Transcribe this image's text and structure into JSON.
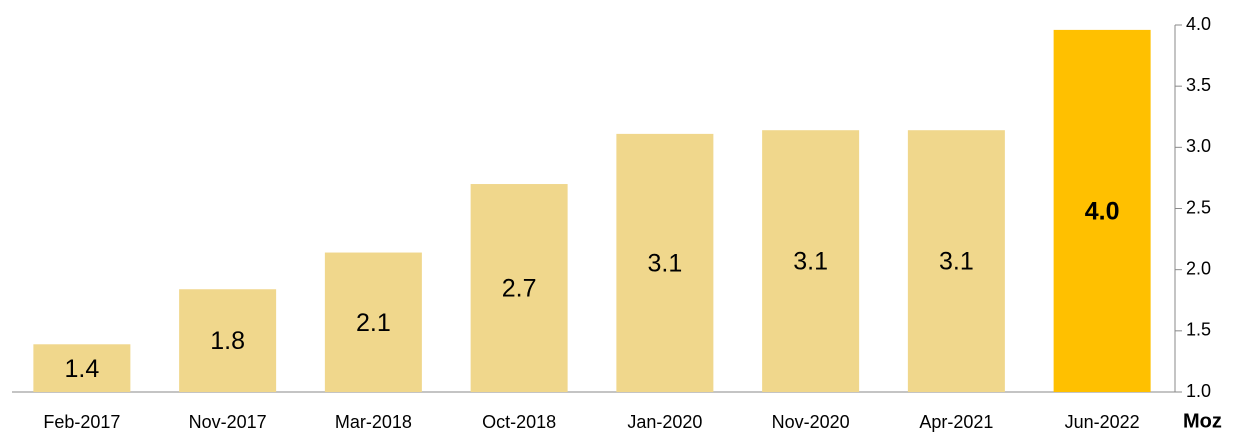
{
  "chart_data": {
    "type": "bar",
    "categories": [
      "Feb-2017",
      "Nov-2017",
      "Mar-2018",
      "Oct-2018",
      "Jan-2020",
      "Nov-2020",
      "Apr-2021",
      "Jun-2022"
    ],
    "values": [
      1.39,
      1.84,
      2.14,
      2.7,
      3.11,
      3.14,
      3.14,
      3.96
    ],
    "value_labels": [
      "1.4",
      "1.8",
      "2.1",
      "2.7",
      "3.1",
      "3.1",
      "3.1",
      "4.0"
    ],
    "colors": [
      "#f0d78c",
      "#f0d78c",
      "#f0d78c",
      "#f0d78c",
      "#f0d78c",
      "#f0d78c",
      "#f0d78c",
      "#ffc000"
    ],
    "y_axis_label": "Moz",
    "ylim": [
      1.0,
      4.0
    ],
    "yticks": [
      {
        "value": 1.0,
        "label": "1.0"
      },
      {
        "value": 1.5,
        "label": "1.5"
      },
      {
        "value": 2.0,
        "label": "2.0"
      },
      {
        "value": 2.5,
        "label": "2.5"
      },
      {
        "value": 3.0,
        "label": "3.0"
      },
      {
        "value": 3.5,
        "label": "3.5"
      },
      {
        "value": 4.0,
        "label": "4.0"
      }
    ],
    "y_axis_side": "right"
  }
}
